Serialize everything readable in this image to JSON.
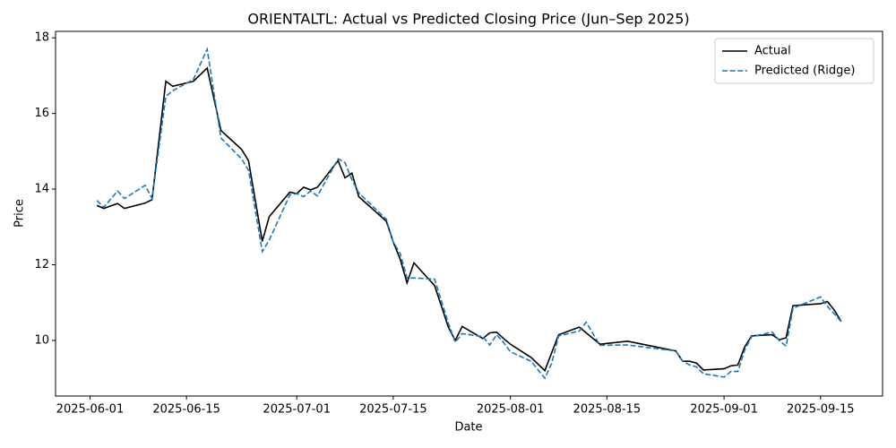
{
  "chart_data": {
    "type": "line",
    "title": "ORIENTALTL: Actual vs Predicted Closing Price (Jun–Sep 2025)",
    "x_label": "Date",
    "y_label": "Price",
    "x": [
      "2025-06-02",
      "2025-06-03",
      "2025-06-05",
      "2025-06-06",
      "2025-06-09",
      "2025-06-10",
      "2025-06-12",
      "2025-06-13",
      "2025-06-16",
      "2025-06-18",
      "2025-06-20",
      "2025-06-23",
      "2025-06-24",
      "2025-06-26",
      "2025-06-27",
      "2025-06-30",
      "2025-07-01",
      "2025-07-02",
      "2025-07-03",
      "2025-07-04",
      "2025-07-07",
      "2025-07-08",
      "2025-07-09",
      "2025-07-10",
      "2025-07-14",
      "2025-07-15",
      "2025-07-16",
      "2025-07-17",
      "2025-07-18",
      "2025-07-21",
      "2025-07-23",
      "2025-07-24",
      "2025-07-25",
      "2025-07-28",
      "2025-07-29",
      "2025-07-30",
      "2025-07-31",
      "2025-08-01",
      "2025-08-04",
      "2025-08-06",
      "2025-08-07",
      "2025-08-08",
      "2025-08-11",
      "2025-08-12",
      "2025-08-14",
      "2025-08-18",
      "2025-08-25",
      "2025-08-26",
      "2025-08-27",
      "2025-08-28",
      "2025-08-29",
      "2025-09-01",
      "2025-09-02",
      "2025-09-03",
      "2025-09-04",
      "2025-09-05",
      "2025-09-08",
      "2025-09-09",
      "2025-09-10",
      "2025-09-11",
      "2025-09-15",
      "2025-09-16",
      "2025-09-17",
      "2025-09-18"
    ],
    "series": [
      {
        "name": "Actual",
        "color": "#000000",
        "dash": "solid",
        "values": [
          13.57,
          13.49,
          13.62,
          13.49,
          13.63,
          13.72,
          16.85,
          16.72,
          16.85,
          17.2,
          15.55,
          15.05,
          14.75,
          12.62,
          13.27,
          13.92,
          13.88,
          14.05,
          13.98,
          14.05,
          14.75,
          14.3,
          14.42,
          13.8,
          13.15,
          12.6,
          12.15,
          11.52,
          12.05,
          11.45,
          10.35,
          10.0,
          10.37,
          10.05,
          10.2,
          10.22,
          10.05,
          9.9,
          9.55,
          9.2,
          9.68,
          10.15,
          10.35,
          10.2,
          9.9,
          9.98,
          9.72,
          9.45,
          9.45,
          9.4,
          9.22,
          9.25,
          9.33,
          9.35,
          9.83,
          10.12,
          10.15,
          10.02,
          10.07,
          10.92,
          10.97,
          11.03,
          10.8,
          10.5
        ]
      },
      {
        "name": "Predicted (Ridge)",
        "color": "#1f77b4",
        "dash": "dashed",
        "values": [
          13.7,
          13.52,
          13.95,
          13.75,
          14.1,
          13.75,
          16.45,
          16.6,
          16.9,
          17.7,
          15.35,
          14.8,
          14.5,
          12.35,
          12.65,
          13.85,
          13.88,
          13.8,
          13.95,
          13.82,
          14.8,
          14.7,
          14.25,
          13.9,
          13.2,
          12.6,
          12.3,
          11.65,
          11.65,
          11.62,
          10.45,
          9.95,
          10.18,
          10.1,
          9.88,
          10.15,
          9.95,
          9.7,
          9.45,
          9.0,
          9.4,
          10.12,
          10.25,
          10.48,
          9.87,
          9.88,
          9.72,
          9.45,
          9.35,
          9.3,
          9.12,
          9.03,
          9.18,
          9.18,
          9.75,
          10.1,
          10.22,
          10.0,
          9.85,
          10.85,
          11.15,
          10.9,
          10.7,
          10.5
        ]
      }
    ],
    "xlim": [
      "2025-05-27",
      "2025-09-24"
    ],
    "xticks": [
      "2025-06-01",
      "2025-06-15",
      "2025-07-01",
      "2025-07-15",
      "2025-08-01",
      "2025-08-15",
      "2025-09-01",
      "2025-09-15"
    ],
    "ylim": [
      8.53,
      18.17
    ],
    "yticks": [
      10,
      12,
      14,
      16,
      18
    ],
    "grid": false,
    "legend": "upper right"
  }
}
